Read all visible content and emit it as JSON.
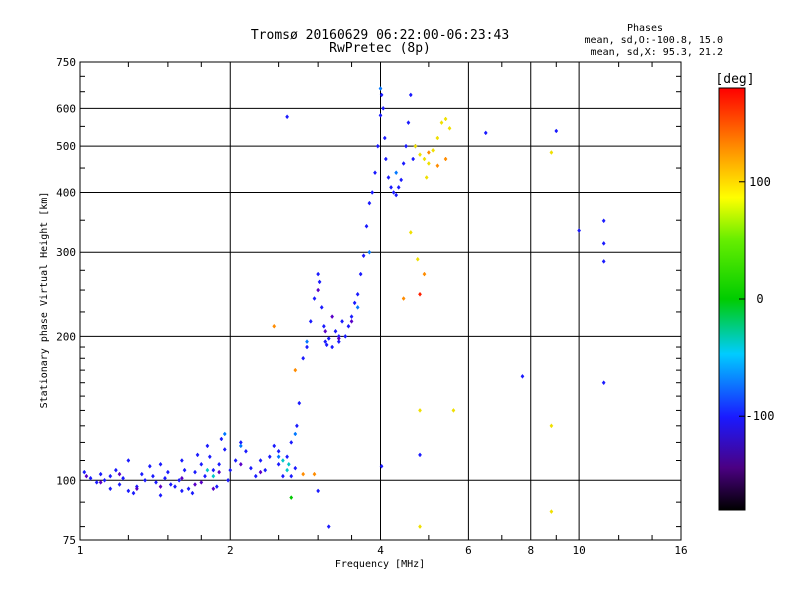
{
  "chart_data": {
    "type": "scatter",
    "title": "Tromsø 20160629 06:22:00-06:23:43",
    "subtitle": "RwPretec (8p)",
    "xlabel": "Frequency [MHz]",
    "ylabel": "Stationary phase Virtual Height [km]",
    "x_scale": "log2",
    "y_scale": "log",
    "xlim": [
      1,
      16
    ],
    "ylim": [
      75,
      750
    ],
    "x_ticks": [
      1,
      2,
      4,
      6,
      8,
      10,
      16
    ],
    "y_ticks": [
      75,
      100,
      200,
      300,
      400,
      500,
      600,
      750
    ],
    "grid": true,
    "phase_info": {
      "heading": "Phases",
      "line_o": "mean, sd,O:-100.8, 15.0",
      "line_x": "mean, sd,X:  95.3, 21.2"
    },
    "colorbar": {
      "label": "[deg]",
      "range": [
        -180,
        180
      ],
      "ticks": [
        100,
        0,
        -100
      ]
    },
    "series": [
      {
        "phase": -100,
        "color": "#1a1aff",
        "points": [
          [
            1.02,
            104
          ],
          [
            1.05,
            101
          ],
          [
            1.08,
            99
          ],
          [
            1.1,
            103
          ],
          [
            1.12,
            100
          ],
          [
            1.15,
            102
          ],
          [
            1.18,
            105
          ],
          [
            1.2,
            98
          ],
          [
            1.22,
            101
          ],
          [
            1.25,
            95
          ],
          [
            1.28,
            94
          ],
          [
            1.3,
            97
          ],
          [
            1.33,
            103
          ],
          [
            1.35,
            100
          ],
          [
            1.38,
            107
          ],
          [
            1.4,
            102
          ],
          [
            1.42,
            99
          ],
          [
            1.45,
            93
          ],
          [
            1.48,
            101
          ],
          [
            1.5,
            104
          ],
          [
            1.52,
            98
          ],
          [
            1.55,
            97
          ],
          [
            1.58,
            100
          ],
          [
            1.6,
            110
          ],
          [
            1.62,
            105
          ],
          [
            1.65,
            96
          ],
          [
            1.68,
            94
          ],
          [
            1.7,
            104
          ],
          [
            1.72,
            113
          ],
          [
            1.75,
            108
          ],
          [
            1.78,
            102
          ],
          [
            1.8,
            118
          ],
          [
            1.82,
            112
          ],
          [
            1.85,
            105
          ],
          [
            1.88,
            97
          ],
          [
            1.9,
            108
          ],
          [
            1.92,
            122
          ],
          [
            1.95,
            116
          ],
          [
            1.98,
            100
          ],
          [
            2.0,
            105
          ],
          [
            2.05,
            110
          ],
          [
            2.1,
            120
          ],
          [
            2.15,
            115
          ],
          [
            2.2,
            106
          ],
          [
            2.25,
            102
          ],
          [
            2.3,
            110
          ],
          [
            2.35,
            105
          ],
          [
            2.4,
            112
          ],
          [
            2.45,
            118
          ],
          [
            2.5,
            108
          ],
          [
            2.55,
            102
          ],
          [
            2.6,
            112
          ],
          [
            2.65,
            120
          ],
          [
            2.7,
            106
          ],
          [
            2.72,
            130
          ],
          [
            2.75,
            145
          ],
          [
            2.8,
            180
          ],
          [
            2.85,
            190
          ],
          [
            2.9,
            215
          ],
          [
            2.95,
            240
          ],
          [
            3.0,
            270
          ],
          [
            3.02,
            260
          ],
          [
            3.05,
            230
          ],
          [
            3.08,
            210
          ],
          [
            3.1,
            195
          ],
          [
            3.12,
            192
          ],
          [
            3.15,
            198
          ],
          [
            3.2,
            190
          ],
          [
            3.25,
            205
          ],
          [
            3.3,
            195
          ],
          [
            3.35,
            215
          ],
          [
            3.4,
            200
          ],
          [
            3.45,
            210
          ],
          [
            3.5,
            220
          ],
          [
            3.55,
            235
          ],
          [
            3.6,
            245
          ],
          [
            3.65,
            270
          ],
          [
            3.7,
            295
          ],
          [
            3.75,
            340
          ],
          [
            3.8,
            380
          ],
          [
            3.85,
            400
          ],
          [
            3.9,
            440
          ],
          [
            3.95,
            500
          ],
          [
            4.0,
            580
          ],
          [
            4.02,
            640
          ],
          [
            4.05,
            600
          ],
          [
            4.08,
            520
          ],
          [
            4.1,
            470
          ],
          [
            4.15,
            430
          ],
          [
            4.2,
            410
          ],
          [
            4.25,
            400
          ],
          [
            4.3,
            395
          ],
          [
            4.35,
            410
          ],
          [
            4.4,
            425
          ],
          [
            4.45,
            460
          ],
          [
            4.5,
            500
          ],
          [
            4.55,
            560
          ],
          [
            4.6,
            640
          ],
          [
            4.65,
            470
          ],
          [
            4.7,
            500
          ],
          [
            3.3,
            200
          ],
          [
            3.0,
            95
          ],
          [
            3.15,
            80
          ],
          [
            2.6,
            576
          ],
          [
            4.02,
            107
          ],
          [
            4.8,
            113
          ],
          [
            6.5,
            533
          ],
          [
            7.7,
            165
          ],
          [
            9.0,
            538
          ],
          [
            10.0,
            333
          ],
          [
            11.2,
            349
          ],
          [
            11.2,
            313
          ],
          [
            11.2,
            287
          ],
          [
            11.2,
            160
          ],
          [
            2.65,
            102
          ],
          [
            2.5,
            115
          ],
          [
            1.6,
            95
          ],
          [
            1.45,
            108
          ],
          [
            1.25,
            110
          ],
          [
            1.15,
            96
          ]
        ]
      },
      {
        "phase": -120,
        "color": "#5a00c8",
        "points": [
          [
            1.03,
            102
          ],
          [
            1.1,
            99
          ],
          [
            1.2,
            103
          ],
          [
            1.3,
            96
          ],
          [
            1.45,
            97
          ],
          [
            1.6,
            101
          ],
          [
            1.75,
            99
          ],
          [
            1.9,
            104
          ],
          [
            2.1,
            108
          ],
          [
            2.3,
            104
          ],
          [
            3.0,
            250
          ],
          [
            3.1,
            205
          ],
          [
            3.2,
            220
          ],
          [
            3.3,
            198
          ],
          [
            3.5,
            215
          ],
          [
            1.85,
            96
          ],
          [
            1.7,
            98
          ]
        ]
      },
      {
        "phase": -60,
        "color": "#0078ff",
        "points": [
          [
            1.95,
            125
          ],
          [
            2.1,
            118
          ],
          [
            2.5,
            112
          ],
          [
            2.7,
            125
          ],
          [
            3.6,
            230
          ],
          [
            3.8,
            300
          ],
          [
            4.0,
            660
          ],
          [
            4.3,
            440
          ],
          [
            2.85,
            195
          ]
        ]
      },
      {
        "phase": 0,
        "color": "#00c8c8",
        "points": [
          [
            1.8,
            105
          ],
          [
            1.85,
            102
          ],
          [
            2.55,
            110
          ],
          [
            2.6,
            105
          ],
          [
            2.62,
            108
          ]
        ]
      },
      {
        "phase": 30,
        "color": "#00c800",
        "points": [
          [
            2.65,
            92
          ]
        ]
      },
      {
        "phase": 100,
        "color": "#f0e000",
        "points": [
          [
            4.6,
            330
          ],
          [
            4.7,
            500
          ],
          [
            4.8,
            480
          ],
          [
            4.9,
            470
          ],
          [
            5.0,
            460
          ],
          [
            5.1,
            490
          ],
          [
            5.2,
            520
          ],
          [
            5.3,
            560
          ],
          [
            5.4,
            570
          ],
          [
            5.5,
            545
          ],
          [
            4.95,
            430
          ],
          [
            4.75,
            290
          ],
          [
            4.8,
            140
          ],
          [
            4.8,
            80
          ],
          [
            5.6,
            140
          ],
          [
            8.8,
            485
          ],
          [
            8.8,
            86
          ],
          [
            8.8,
            130
          ]
        ]
      },
      {
        "phase": 140,
        "color": "#ff8c00",
        "points": [
          [
            2.45,
            210
          ],
          [
            2.7,
            170
          ],
          [
            2.8,
            103
          ],
          [
            2.95,
            103
          ],
          [
            4.45,
            240
          ],
          [
            4.9,
            270
          ],
          [
            5.0,
            485
          ],
          [
            5.2,
            455
          ],
          [
            5.4,
            470
          ]
        ]
      },
      {
        "phase": 170,
        "color": "#ff2000",
        "points": [
          [
            4.8,
            245
          ]
        ]
      }
    ]
  }
}
